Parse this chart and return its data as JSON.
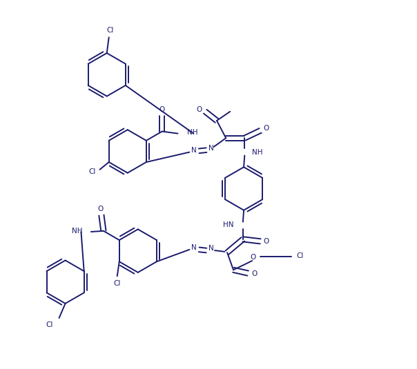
{
  "bg_color": "#ffffff",
  "line_color": "#1a1a6e",
  "line_width": 1.4,
  "figsize": [
    6.04,
    5.35
  ],
  "dpi": 100,
  "xlim": [
    0,
    10
  ],
  "ylim": [
    0,
    8.9
  ]
}
